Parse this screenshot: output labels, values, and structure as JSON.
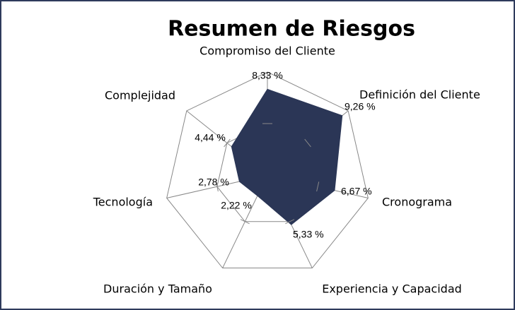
{
  "chart_data": {
    "type": "radar",
    "title": "Resumen de Riesgos",
    "categories": [
      "Compromiso del Cliente",
      "Definición del Cliente",
      "Cronograma",
      "Experiencia y Capacidad",
      "Duración y Tamaño",
      "Tecnología",
      "Complejidad"
    ],
    "values": [
      8.33,
      9.26,
      6.67,
      5.33,
      2.22,
      2.78,
      4.44
    ],
    "value_labels": [
      "8,33 %",
      "9,26 %",
      "6,67 %",
      "5,33 %",
      "2,22 %",
      "2,78 %",
      "4,44 %"
    ],
    "color": "#2b3656",
    "rlim": [
      0,
      10
    ],
    "rticks": [
      0,
      5,
      10
    ],
    "grid": true
  }
}
